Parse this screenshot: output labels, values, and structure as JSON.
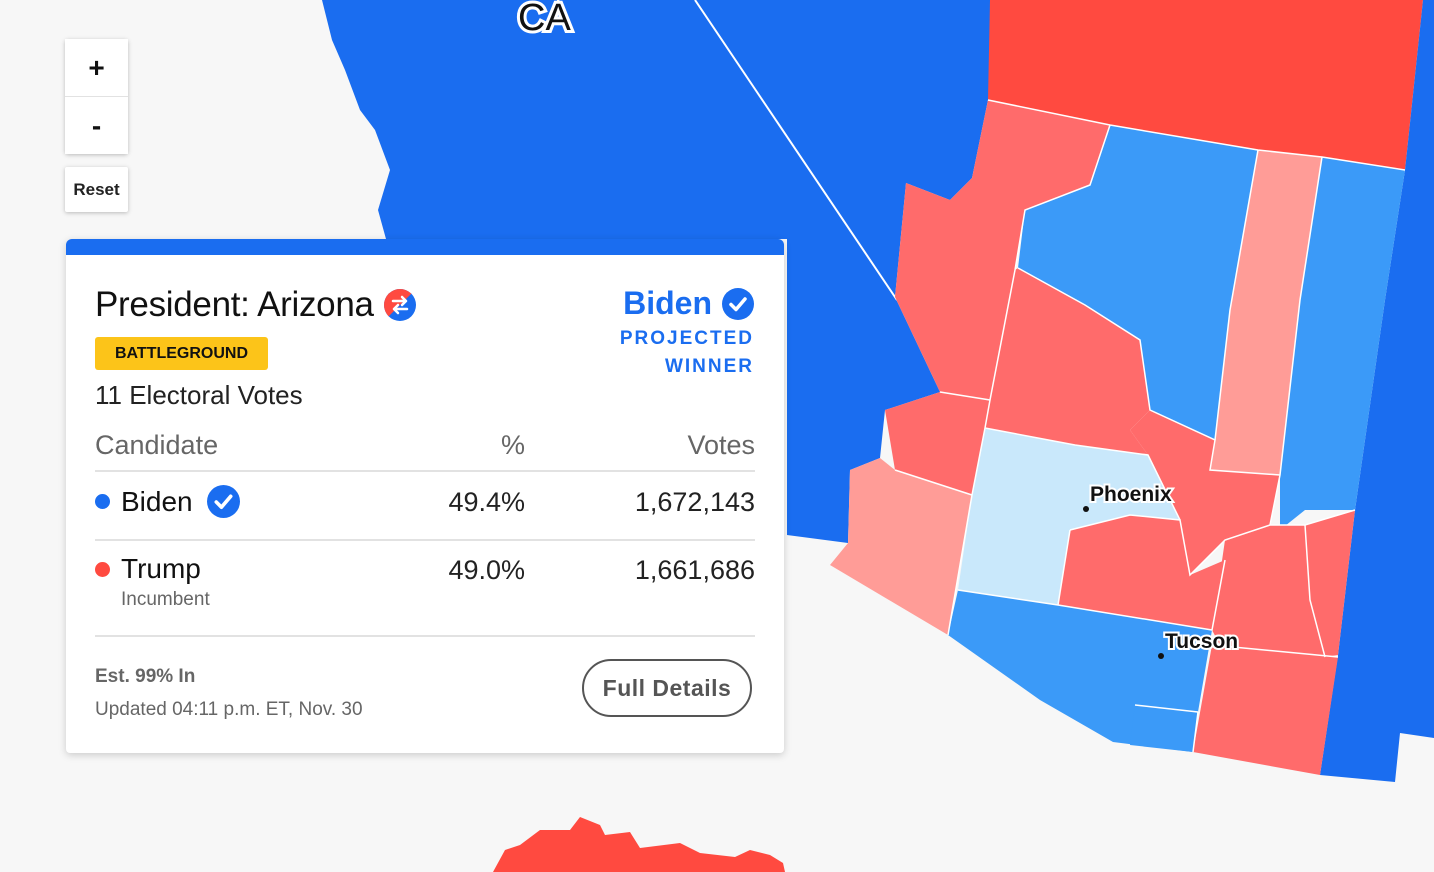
{
  "map": {
    "state_label": "CA",
    "cities": [
      "Phoenix",
      "Tucson"
    ],
    "colors": {
      "dem_solid": "#1a6df0",
      "dem_lean": "#3b9af8",
      "dem_light": "#c9e8fb",
      "rep_solid": "#ff4a40",
      "rep_lean": "#ff6b6b",
      "rep_light": "#ff9c97",
      "background": "#f7f7f7"
    }
  },
  "controls": {
    "zoom_in": "+",
    "zoom_out": "-",
    "reset": "Reset"
  },
  "card": {
    "title": "President: Arizona",
    "flip_icon": "flip-arrows-icon",
    "badge": "BATTLEGROUND",
    "electoral_votes": "11 Electoral Votes",
    "winner": {
      "name": "Biden",
      "label_line1": "PROJECTED",
      "label_line2": "WINNER"
    },
    "table": {
      "headers": {
        "candidate": "Candidate",
        "pct": "%",
        "votes": "Votes"
      },
      "rows": [
        {
          "name": "Biden",
          "pct": "49.4%",
          "votes": "1,672,143",
          "color": "#1a6df0",
          "winner": true,
          "note": ""
        },
        {
          "name": "Trump",
          "pct": "49.0%",
          "votes": "1,661,686",
          "color": "#ff4a40",
          "winner": false,
          "note": "Incumbent"
        }
      ]
    },
    "reporting": "Est. 99% In",
    "updated": "Updated 04:11 p.m. ET, Nov. 30",
    "details_button": "Full Details"
  }
}
